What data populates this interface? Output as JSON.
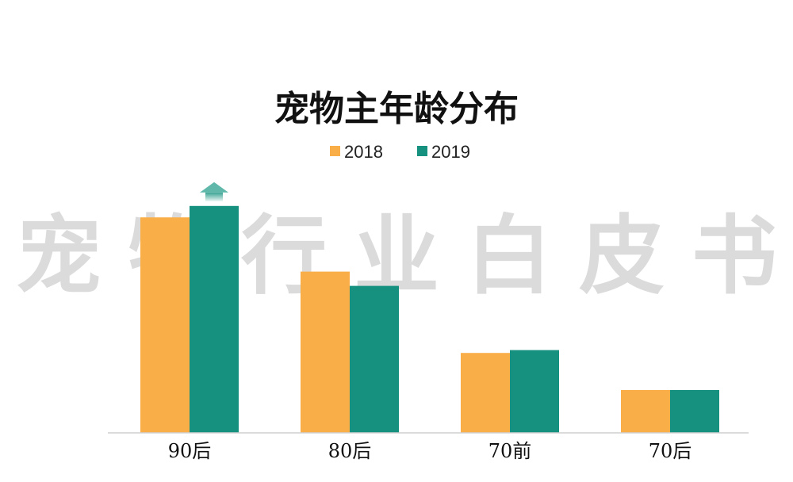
{
  "watermark": "宠物行业白皮书",
  "colors": {
    "series_2018": "#F9AE48",
    "series_2019": "#16917F",
    "axis": "#cfcfcf",
    "arrow": "#5fb8aa"
  },
  "chart_data": {
    "type": "bar",
    "title": "宠物主年龄分布",
    "xlabel": "",
    "ylabel": "",
    "categories": [
      "90后",
      "80后",
      "70前",
      "70后"
    ],
    "series": [
      {
        "name": "2018",
        "values": [
          75.5,
          56.5,
          28.0,
          15.0
        ]
      },
      {
        "name": "2019",
        "values": [
          79.5,
          51.5,
          29.0,
          15.0
        ]
      }
    ],
    "ylim": [
      0,
      100
    ],
    "grid": false,
    "legend": "top-center",
    "annotations": [
      {
        "type": "up-arrow",
        "category": "90后",
        "series": "2019"
      }
    ]
  }
}
